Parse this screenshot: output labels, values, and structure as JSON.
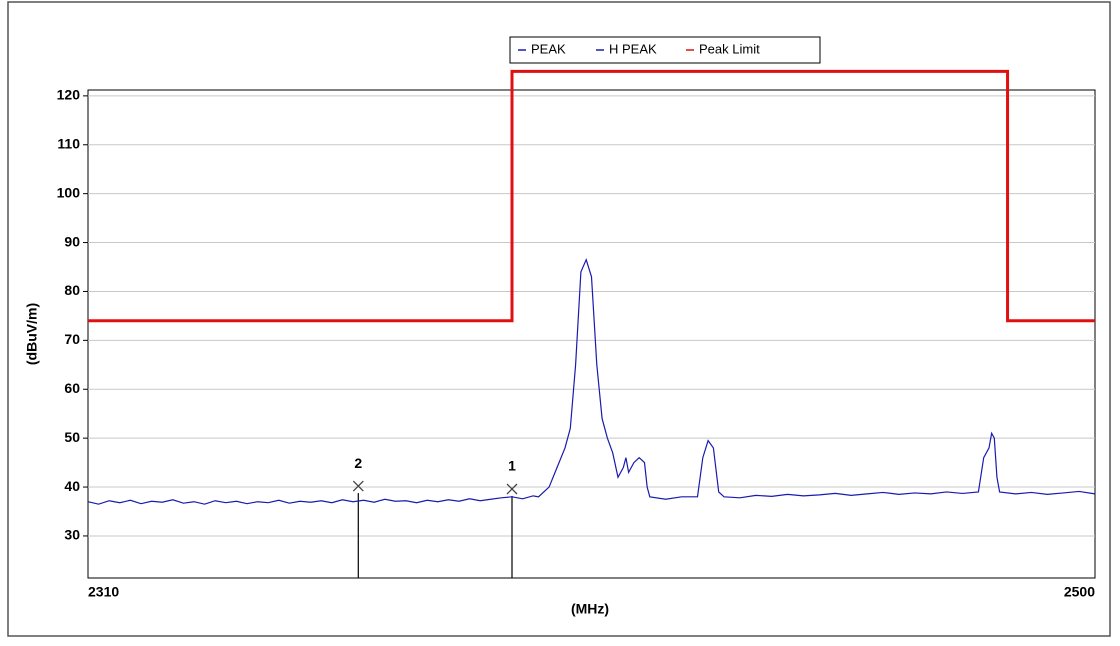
{
  "chart_data": {
    "type": "line",
    "x_label": "(MHz)",
    "y_label": "(dBuV/m)",
    "xlim": [
      2310,
      2500
    ],
    "xticks": [
      2310,
      2500
    ],
    "ylim": [
      21.4,
      121.2
    ],
    "yticks": [
      30,
      40,
      50,
      60,
      70,
      80,
      90,
      100,
      110,
      120
    ],
    "grid": true,
    "legend": "top",
    "series": [
      {
        "name": "PEAK",
        "color": "#1a1ab0",
        "x": [
          2310,
          2312,
          2314,
          2316,
          2318,
          2320,
          2322,
          2324,
          2326,
          2328,
          2330,
          2332,
          2334,
          2336,
          2338,
          2340,
          2342,
          2344,
          2346,
          2348,
          2350,
          2352,
          2354,
          2356,
          2358,
          2360,
          2362,
          2364,
          2366,
          2368,
          2370,
          2372,
          2374,
          2376,
          2378,
          2380,
          2382,
          2384,
          2386,
          2388,
          2390,
          2392,
          2394,
          2395,
          2397,
          2398.5,
          2400,
          2401,
          2402,
          2403,
          2404,
          2405,
          2406,
          2407,
          2408,
          2409,
          2410,
          2411,
          2411.5,
          2412,
          2413,
          2414,
          2415,
          2415.5,
          2416,
          2419,
          2422,
          2425,
          2426,
          2427,
          2428,
          2429,
          2430,
          2433,
          2436,
          2439,
          2442,
          2445,
          2448,
          2451,
          2454,
          2457,
          2460,
          2463,
          2466,
          2469,
          2472,
          2475,
          2478,
          2479,
          2480,
          2480.5,
          2481,
          2481.5,
          2482,
          2485,
          2488,
          2491,
          2494,
          2497,
          2500
        ],
        "values": [
          37,
          36.5,
          37.2,
          36.8,
          37.3,
          36.6,
          37.1,
          36.9,
          37.4,
          36.7,
          37,
          36.5,
          37.2,
          36.8,
          37.1,
          36.6,
          37,
          36.8,
          37.3,
          36.7,
          37.1,
          36.9,
          37.2,
          36.8,
          37.4,
          37,
          37.3,
          36.9,
          37.5,
          37.1,
          37.2,
          36.8,
          37.3,
          37,
          37.4,
          37.1,
          37.6,
          37.2,
          37.5,
          37.8,
          38,
          37.6,
          38.2,
          38,
          40,
          44,
          48,
          52,
          65,
          84,
          86.5,
          83,
          65,
          54,
          50,
          47,
          42,
          44,
          46,
          43,
          45,
          46,
          45,
          40,
          38,
          37.5,
          38,
          38,
          46,
          49.5,
          48,
          39,
          38,
          37.8,
          38.3,
          38.1,
          38.5,
          38.2,
          38.4,
          38.7,
          38.3,
          38.6,
          38.9,
          38.5,
          38.8,
          38.6,
          39,
          38.7,
          39,
          46,
          48,
          51,
          50,
          42,
          39,
          38.6,
          38.9,
          38.5,
          38.8,
          39.1,
          38.6
        ]
      },
      {
        "name": "H PEAK",
        "color": "#1a1ab0",
        "x": [],
        "values": []
      },
      {
        "name": "Peak Limit",
        "color": "#e01010",
        "x": [
          2310,
          2390,
          2390,
          2483.5,
          2483.5,
          2500
        ],
        "values": [
          74,
          74,
          125,
          125,
          74,
          74
        ]
      }
    ],
    "markers": [
      {
        "label": "1",
        "x": 2390,
        "y": 39.6
      },
      {
        "label": "2",
        "x": 2361,
        "y": 40.2
      }
    ]
  }
}
